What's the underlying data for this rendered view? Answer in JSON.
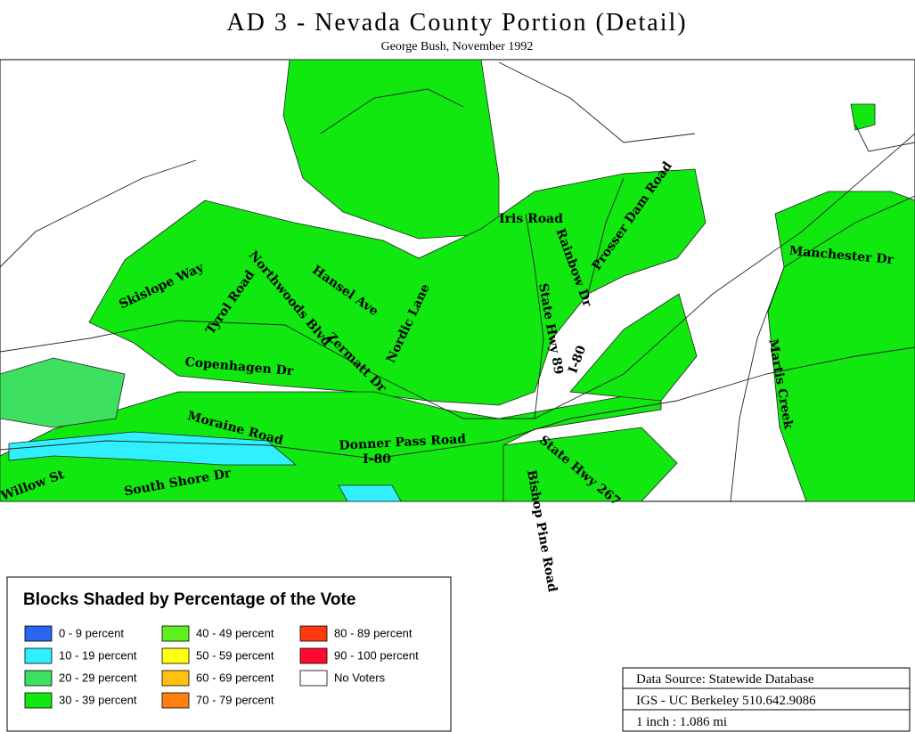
{
  "title": "AD 3 - Nevada County Portion (Detail)",
  "subtitle": "George Bush, November 1992",
  "map": {
    "labels": [
      "Iris Road",
      "Prosser Dam Road",
      "Rainbow Dr",
      "Manchester Dr",
      "Skislope Way",
      "Tyrol Road",
      "Northwoods Blvd",
      "Hansel Ave",
      "Nordic Lane",
      "State Hwy 89",
      "Martis Creek",
      "I-80",
      "Zermatt Dr",
      "Copenhagen Dr",
      "Moraine Road",
      "Donner Pass Road",
      "I-80",
      "State Hwy 267",
      "Bishop Pine Road",
      "Willow St",
      "South Shore Dr"
    ]
  },
  "legend": {
    "title": "Blocks Shaded by Percentage of the Vote",
    "entries": [
      {
        "label": "0 - 9 percent",
        "color": "#2a64f0"
      },
      {
        "label": "10 - 19 percent",
        "color": "#30f0ff"
      },
      {
        "label": "20 - 29 percent",
        "color": "#3ee060"
      },
      {
        "label": "30 - 39 percent",
        "color": "#10e810"
      },
      {
        "label": "40 - 49 percent",
        "color": "#5cf01c"
      },
      {
        "label": "50 - 59 percent",
        "color": "#ffff10"
      },
      {
        "label": "60 - 69 percent",
        "color": "#ffc010"
      },
      {
        "label": "70 - 79 percent",
        "color": "#ff8010"
      },
      {
        "label": "80 - 89 percent",
        "color": "#ff3a10"
      },
      {
        "label": "90 - 100 percent",
        "color": "#ff0a30"
      },
      {
        "label": "No Voters",
        "color": "#ffffff"
      }
    ]
  },
  "source": {
    "lines": [
      "Data Source: Statewide Database",
      "IGS - UC Berkeley 510.642.9086",
      "1 inch : 1.086 mi"
    ]
  }
}
